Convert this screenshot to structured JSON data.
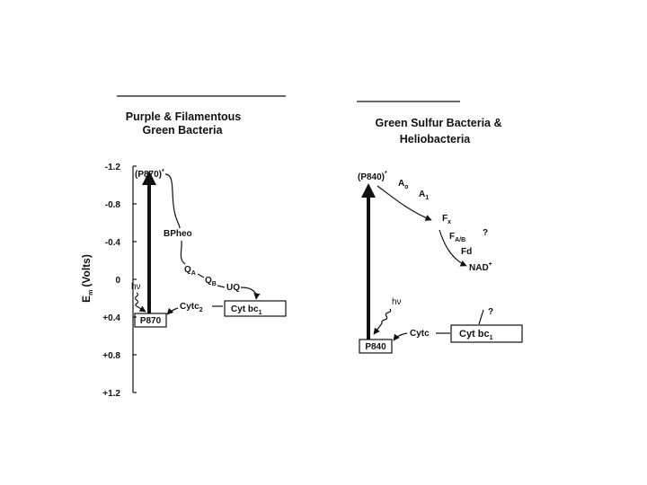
{
  "left_panel": {
    "title": [
      "Purple & Filamentous",
      "Green Bacteria"
    ],
    "axis_label": {
      "text": "E",
      "sub": "m",
      "rest": "(Volts)"
    },
    "ticks": [
      "-1.2",
      "-0.8",
      "-0.4",
      "0",
      "+0.4",
      "+0.8",
      "+1.2"
    ],
    "excited": {
      "text": "(P870)",
      "sup": "*"
    },
    "bpheo": "BPheo",
    "qa": {
      "text": "Q",
      "sub": "A"
    },
    "qb": {
      "text": "Q",
      "sub": "B"
    },
    "uq": "UQ",
    "light": "hν",
    "cytc": {
      "text": "Cytc",
      "sub": "2"
    },
    "cytbc": {
      "text": "Cyt bc",
      "sub": "1"
    },
    "ground": "P870"
  },
  "right_panel": {
    "title": [
      "Green Sulfur Bacteria &",
      "Heliobacteria"
    ],
    "excited": {
      "text": "(P840)",
      "sup": "*"
    },
    "a0": {
      "text": "A",
      "sub": "o"
    },
    "a1": {
      "text": "A",
      "sub": "1"
    },
    "fx": {
      "text": "F",
      "sub": "x"
    },
    "fab": {
      "text": "F",
      "sub": "A/B"
    },
    "question1": "?",
    "fd": "Fd",
    "nad": {
      "text": "NAD",
      "sup": "+"
    },
    "light": "hν",
    "cytc": "Cytc",
    "cytbc": {
      "text": "Cyt bc",
      "sub": "1"
    },
    "question2": "?",
    "ground": "P840"
  }
}
